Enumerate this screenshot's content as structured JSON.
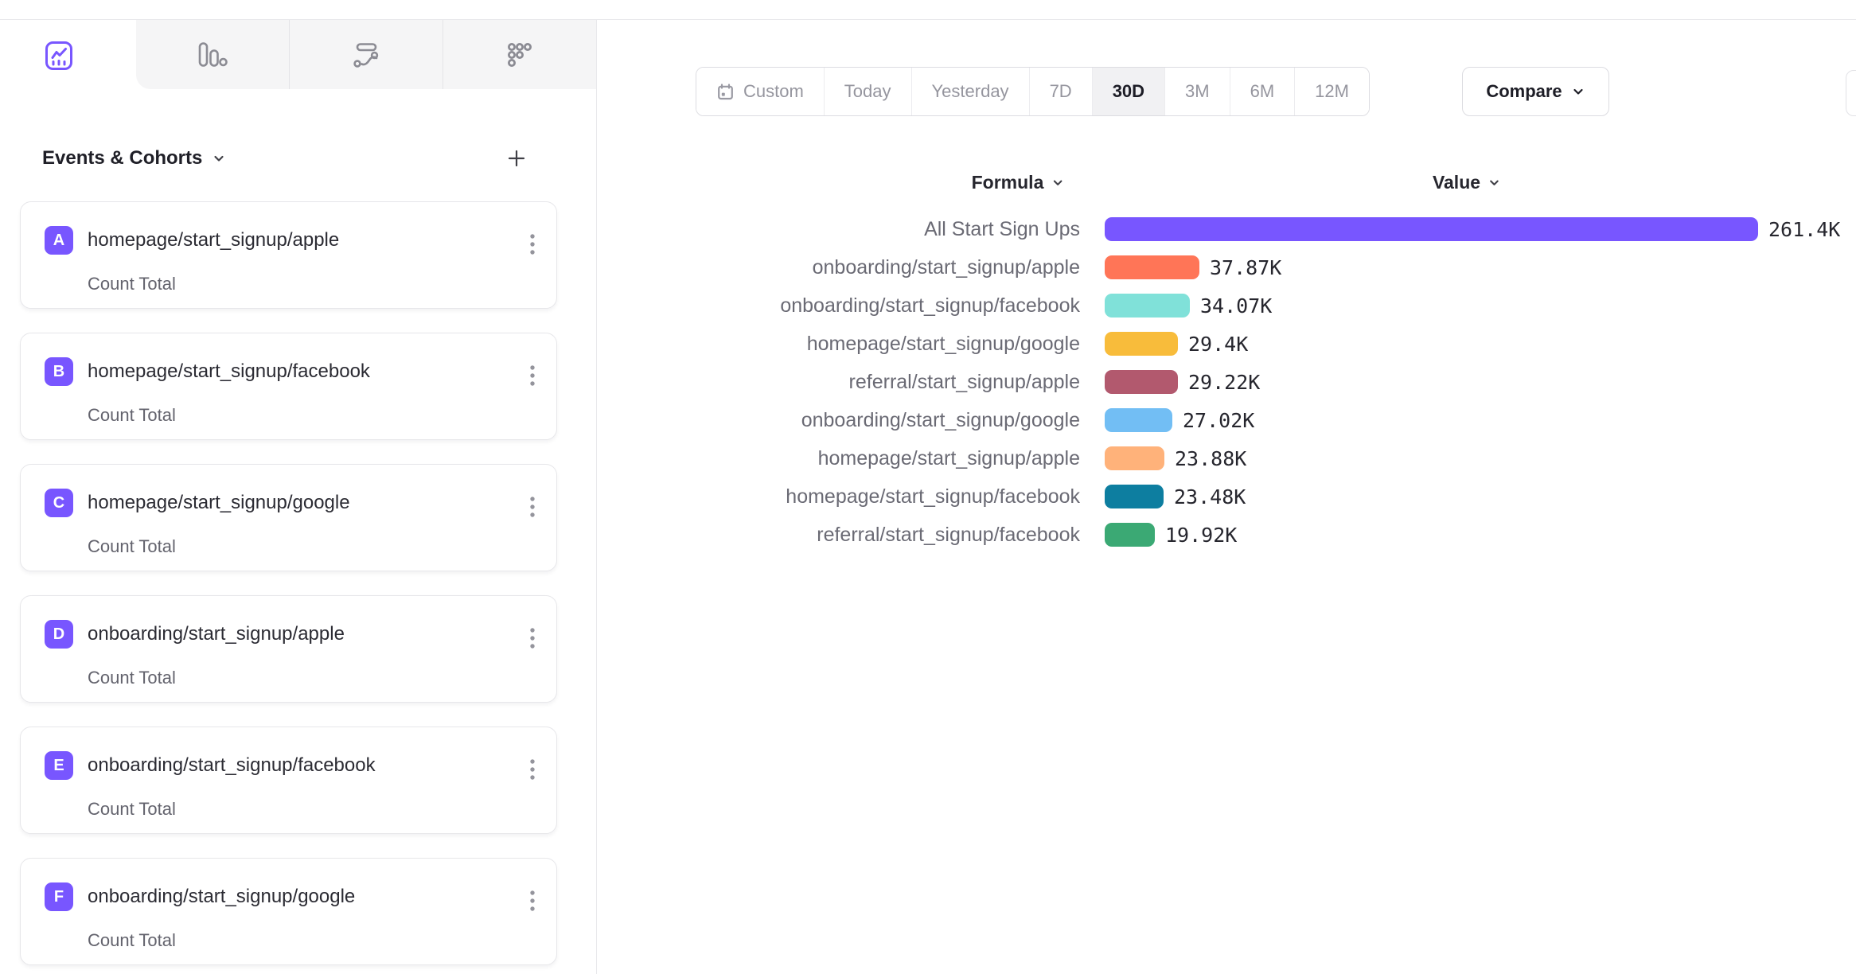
{
  "view_tabs": [
    {
      "name": "insights",
      "icon": "line-chart-icon",
      "active": true
    },
    {
      "name": "funnels",
      "icon": "bar-funnel-icon",
      "active": false
    },
    {
      "name": "flows",
      "icon": "flows-wave-icon",
      "active": false
    },
    {
      "name": "retention",
      "icon": "dots-grid-icon",
      "active": false
    }
  ],
  "sidebar": {
    "title": "Events & Cohorts",
    "events": [
      {
        "letter": "A",
        "name": "homepage/start_signup/apple",
        "metric": "Count Total"
      },
      {
        "letter": "B",
        "name": "homepage/start_signup/facebook",
        "metric": "Count Total"
      },
      {
        "letter": "C",
        "name": "homepage/start_signup/google",
        "metric": "Count Total"
      },
      {
        "letter": "D",
        "name": "onboarding/start_signup/apple",
        "metric": "Count Total"
      },
      {
        "letter": "E",
        "name": "onboarding/start_signup/facebook",
        "metric": "Count Total"
      },
      {
        "letter": "F",
        "name": "onboarding/start_signup/google",
        "metric": "Count Total"
      }
    ],
    "badge_color": "#7856FF"
  },
  "toolbar": {
    "date_ranges": [
      {
        "label": "Custom",
        "has_calendar_icon": true
      },
      {
        "label": "Today"
      },
      {
        "label": "Yesterday"
      },
      {
        "label": "7D"
      },
      {
        "label": "30D"
      },
      {
        "label": "3M"
      },
      {
        "label": "6M"
      },
      {
        "label": "12M"
      }
    ],
    "active_range": "30D",
    "compare_label": "Compare"
  },
  "chart_data": {
    "type": "bar",
    "orientation": "horizontal",
    "column_headers": {
      "formula": "Formula",
      "value": "Value"
    },
    "max_value": 261400,
    "rows": [
      {
        "label": "All Start Sign Ups",
        "value": 261400,
        "display_value": "261.4K",
        "color": "#7856FF"
      },
      {
        "label": "onboarding/start_signup/apple",
        "value": 37870,
        "display_value": "37.87K",
        "color": "#FF7557"
      },
      {
        "label": "onboarding/start_signup/facebook",
        "value": 34070,
        "display_value": "34.07K",
        "color": "#80E1D9"
      },
      {
        "label": "homepage/start_signup/google",
        "value": 29400,
        "display_value": "29.4K",
        "color": "#F8BC3B"
      },
      {
        "label": "referral/start_signup/apple",
        "value": 29220,
        "display_value": "29.22K",
        "color": "#B2596E"
      },
      {
        "label": "onboarding/start_signup/google",
        "value": 27020,
        "display_value": "27.02K",
        "color": "#72BEF4"
      },
      {
        "label": "homepage/start_signup/apple",
        "value": 23880,
        "display_value": "23.88K",
        "color": "#FFB27A"
      },
      {
        "label": "homepage/start_signup/facebook",
        "value": 23480,
        "display_value": "23.48K",
        "color": "#0D7EA0"
      },
      {
        "label": "referral/start_signup/facebook",
        "value": 19920,
        "display_value": "19.92K",
        "color": "#3BA974"
      }
    ],
    "accent_color": "#7856FF"
  }
}
